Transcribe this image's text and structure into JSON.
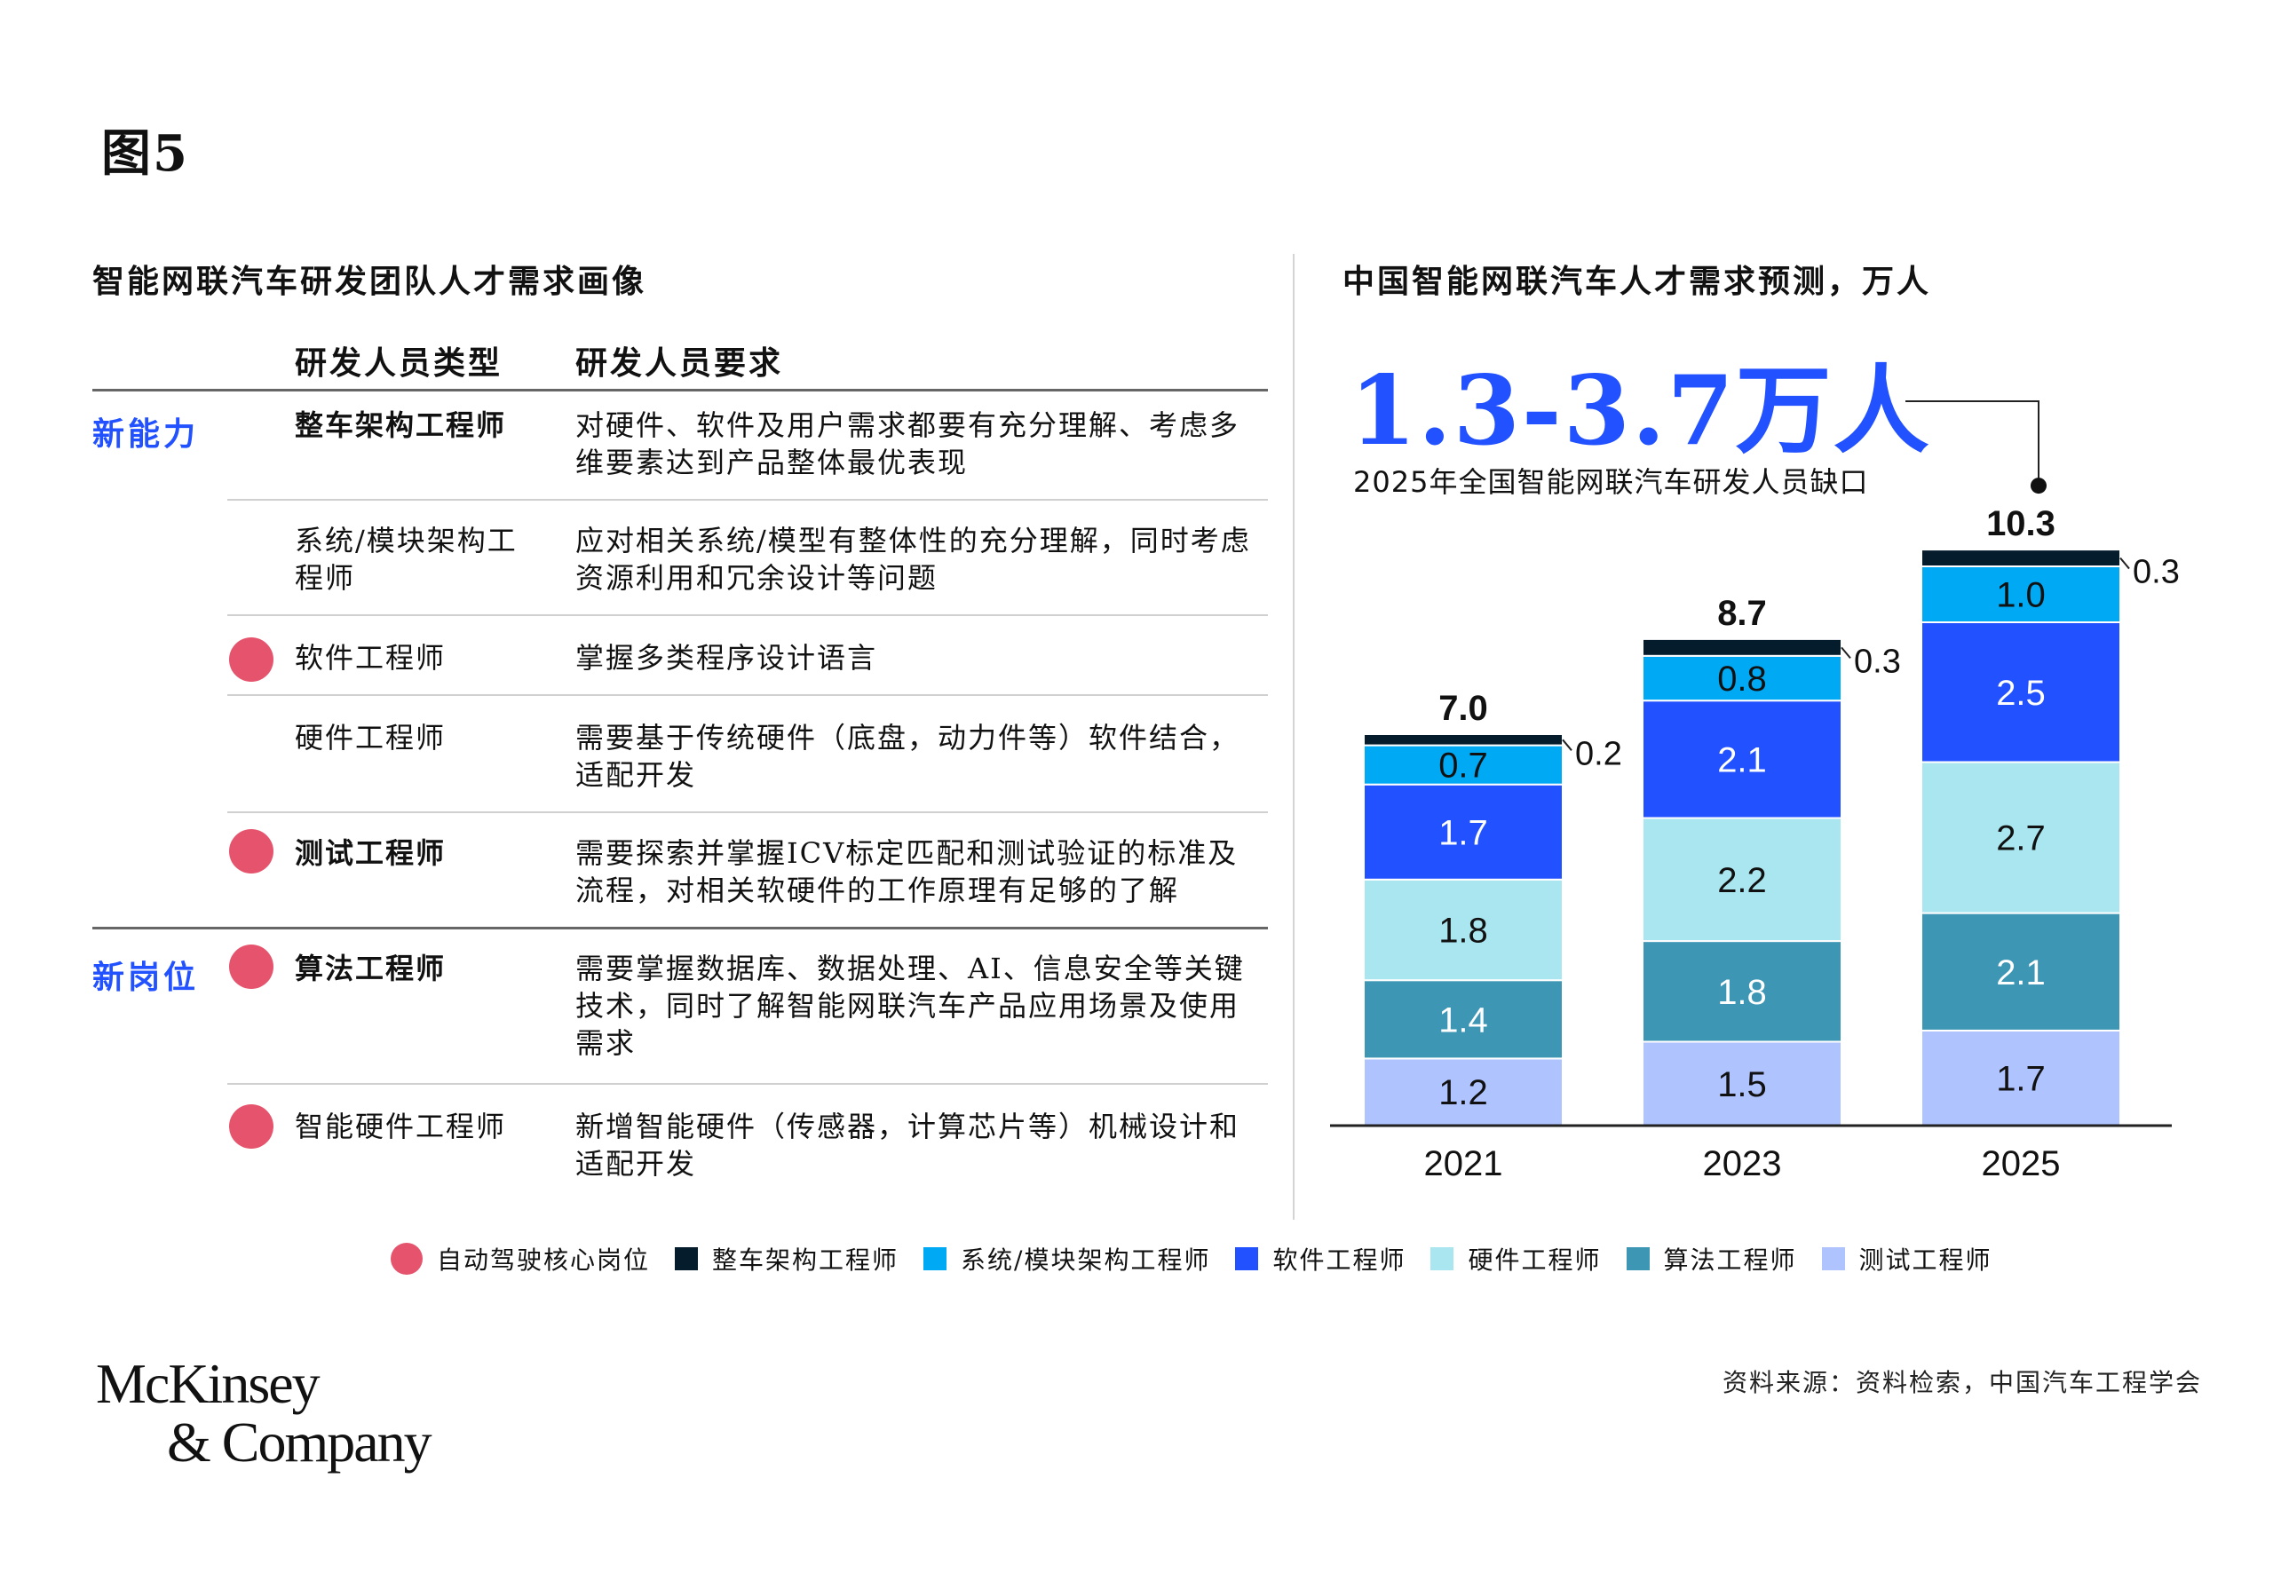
{
  "figure_label": "图5",
  "left_title": "智能网联汽车研发团队人才需求画像",
  "right_title": "中国智能网联汽车人才需求预测，万人",
  "table": {
    "header_type": "研发人员类型",
    "header_req": "研发人员要求",
    "categories": [
      "新能力",
      "新岗位"
    ],
    "rows": [
      {
        "role": "整车架构工程师",
        "req": "对硬件、软件及用户需求都要有充分理解、考虑多维要素达到产品整体最优表现"
      },
      {
        "role": "系统/模块架构工程师",
        "req": "应对相关系统/模型有整体性的充分理解，同时考虑资源利用和冗余设计等问题"
      },
      {
        "role": "软件工程师",
        "req": "掌握多类程序设计语言"
      },
      {
        "role": "硬件工程师",
        "req": "需要基于传统硬件（底盘，动力件等）软件结合，适配开发"
      },
      {
        "role": "测试工程师",
        "req": "需要探索并掌握ICV标定匹配和测试验证的标准及流程，对相关软硬件的工作原理有足够的了解"
      },
      {
        "role": "算法工程师",
        "req": "需要掌握数据库、数据处理、AI、信息安全等关键技术，同时了解智能网联汽车产品应用场景及使用需求"
      },
      {
        "role": "智能硬件工程师",
        "req": "新增智能硬件（传感器，计算芯片等）机械设计和适配开发"
      }
    ]
  },
  "big_stat": "1.3-3.7万人",
  "big_stat_sub": "2025年全国智能网联汽车研发人员缺口",
  "legend": {
    "core_label": "自动驾驶核心岗位",
    "items": [
      "整车架构工程师",
      "系统/模块架构工程师",
      "软件工程师",
      "硬件工程师",
      "算法工程师",
      "测试工程师"
    ]
  },
  "source": "资料来源：资料检索，中国汽车工程学会",
  "logo_line1": "McKinsey",
  "logo_line2": "& Company",
  "colors": {
    "accent_blue": "#2251FF",
    "core_dot": "#E5546C",
    "整车架构工程师": "#051C2C",
    "系统/模块架构工程师": "#00A9F4",
    "软件工程师": "#2251FF",
    "硬件工程师": "#AAE6F0",
    "算法工程师": "#3C96B4",
    "测试工程师": "#AFC3FF"
  },
  "chart_data": {
    "type": "bar",
    "stacked": true,
    "categories": [
      "2021",
      "2023",
      "2025"
    ],
    "totals": [
      7.0,
      8.7,
      10.3
    ],
    "series": [
      {
        "name": "测试工程师",
        "values": [
          1.2,
          1.5,
          1.7
        ]
      },
      {
        "name": "算法工程师",
        "values": [
          1.4,
          1.8,
          2.1
        ]
      },
      {
        "name": "硬件工程师",
        "values": [
          1.8,
          2.2,
          2.7
        ]
      },
      {
        "name": "软件工程师",
        "values": [
          1.7,
          2.1,
          2.5
        ]
      },
      {
        "name": "系统/模块架构工程师",
        "values": [
          0.7,
          0.8,
          1.0
        ]
      },
      {
        "name": "整车架构工程师",
        "values": [
          0.2,
          0.3,
          0.3
        ]
      }
    ]
  }
}
